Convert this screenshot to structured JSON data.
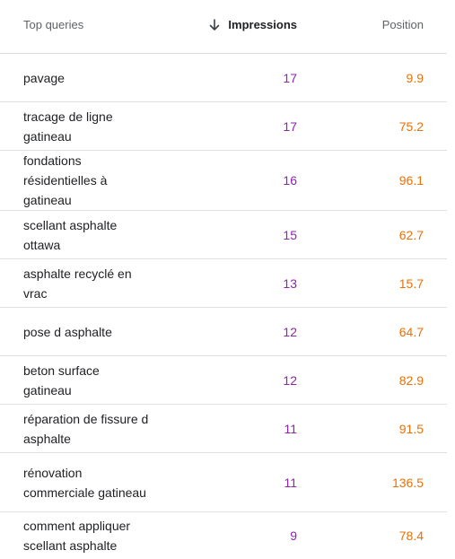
{
  "table": {
    "columns": {
      "query": "Top queries",
      "impressions": "Impressions",
      "position": "Position"
    },
    "sort_icon": "arrow-down-icon",
    "colors": {
      "impressions": "#8e24aa",
      "position": "#e8710a",
      "header_text": "#5f6368",
      "divider": "#e0e0e0"
    },
    "rows": [
      {
        "query": "pavage",
        "impressions": "17",
        "position": "9.9"
      },
      {
        "query": "tracage de ligne gatineau",
        "impressions": "17",
        "position": "75.2"
      },
      {
        "query": "fondations résidentielles à gatineau",
        "impressions": "16",
        "position": "96.1"
      },
      {
        "query": "scellant asphalte ottawa",
        "impressions": "15",
        "position": "62.7"
      },
      {
        "query": "asphalte recyclé en vrac",
        "impressions": "13",
        "position": "15.7"
      },
      {
        "query": "pose d asphalte",
        "impressions": "12",
        "position": "64.7"
      },
      {
        "query": "beton surface gatineau",
        "impressions": "12",
        "position": "82.9"
      },
      {
        "query": "réparation de fissure d asphalte",
        "impressions": "11",
        "position": "91.5"
      },
      {
        "query": "rénovation commerciale gatineau",
        "impressions": "11",
        "position": "136.5"
      },
      {
        "query": "comment appliquer scellant asphalte",
        "impressions": "9",
        "position": "78.4"
      }
    ]
  }
}
